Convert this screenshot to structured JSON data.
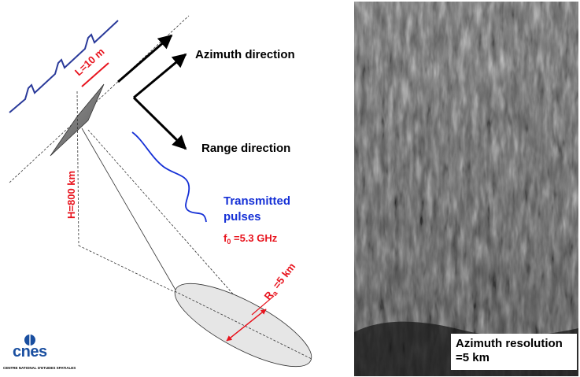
{
  "labels": {
    "azimuth_direction": "Azimuth direction",
    "range_direction": "Range direction",
    "antenna_length": "L=10 m",
    "altitude": "H=800 km",
    "transmitted_pulses_line1": "Transmitted",
    "transmitted_pulses_line2": "pulses",
    "freq_prefix": "f",
    "freq_sub": "0",
    "freq_value": " =5.3 GHz",
    "ra_prefix": "R",
    "ra_sub": "a",
    "ra_value": " =5 km"
  },
  "sar_image": {
    "caption_line1": "Azimuth resolution",
    "caption_line2": "=5 km"
  },
  "logo": {
    "name": "cnes",
    "subtitle": "CENTRE NATIONAL D'ETUDES SPATIALES"
  },
  "colors": {
    "red": "#e8141e",
    "blue": "#1530d6",
    "navy": "#2a3a9a",
    "logo_blue": "#1a4fa0"
  }
}
